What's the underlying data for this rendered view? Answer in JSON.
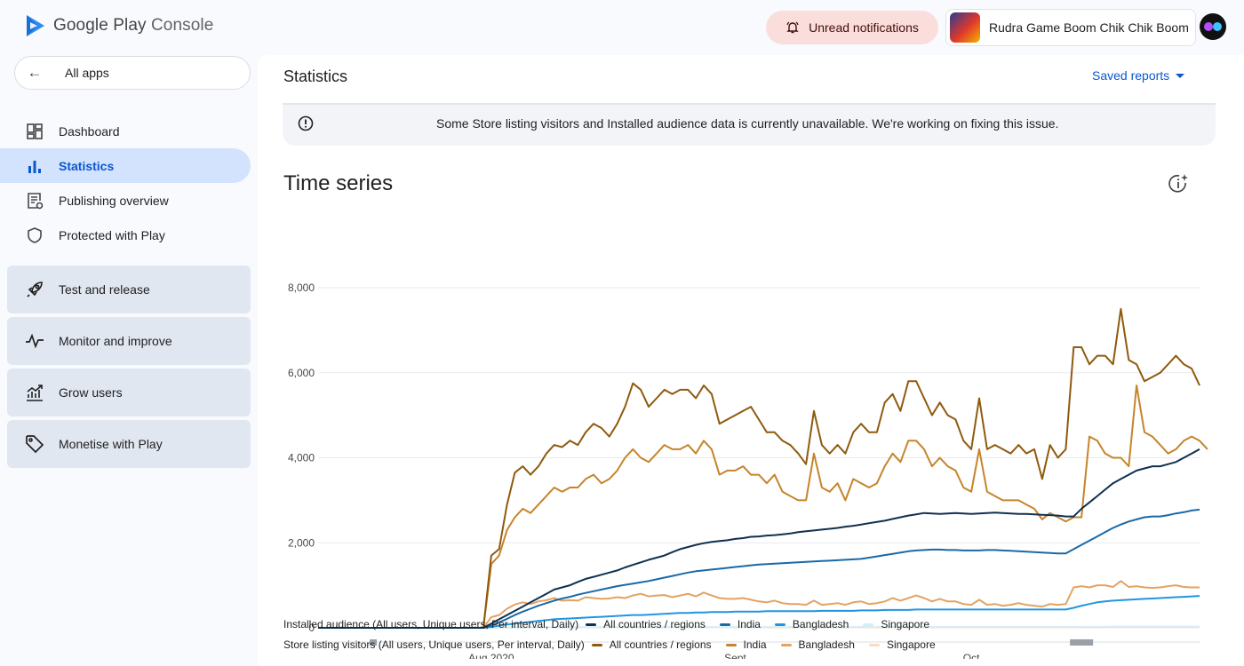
{
  "header": {
    "logo_text_a": "Google Play",
    "logo_text_b": " Console",
    "notifications_label": "Unread notifications",
    "app_name": "Rudra Game Boom Chik Chik Boom"
  },
  "sidebar": {
    "all_apps": "All apps",
    "items": [
      {
        "label": "Dashboard",
        "icon": "dashboard-icon"
      },
      {
        "label": "Statistics",
        "icon": "bar-chart-icon",
        "active": true
      },
      {
        "label": "Publishing overview",
        "icon": "publishing-icon"
      },
      {
        "label": "Protected with Play",
        "icon": "shield-icon"
      }
    ],
    "sections": [
      {
        "label": "Test and release",
        "icon": "rocket-icon"
      },
      {
        "label": "Monitor and improve",
        "icon": "pulse-icon"
      },
      {
        "label": "Grow users",
        "icon": "growth-icon"
      },
      {
        "label": "Monetise with Play",
        "icon": "tag-icon"
      }
    ]
  },
  "main": {
    "page_title": "Statistics",
    "saved_reports": "Saved reports",
    "banner_text": "Some Store listing visitors and Installed audience data is currently unavailable. We're working on fixing this issue.",
    "section_title": "Time series"
  },
  "colors": {
    "accent": "#0b57d0",
    "active_nav_bg": "#d3e3fd",
    "installed_all": "#0f3150",
    "installed_india": "#1a69a6",
    "installed_bangladesh": "#2196e0",
    "installed_singapore": "#d6edf8",
    "visitors_all": "#8f5a0e",
    "visitors_india": "#c6842b",
    "visitors_bangladesh": "#e3a363",
    "visitors_singapore": "#f6dcc2"
  },
  "legend": {
    "installed_title": "Installed audience (All users, Unique users, Per interval, Daily)",
    "visitors_title": "Store listing visitors (All users, Unique users, Per interval, Daily)",
    "installed_items": [
      "All countries / regions",
      "India",
      "Bangladesh",
      "Singapore"
    ],
    "visitors_items": [
      "All countries / regions",
      "India",
      "Bangladesh",
      "Singapore"
    ]
  },
  "chart_data": {
    "type": "line",
    "title": "Time series",
    "xlabel": "",
    "ylabel": "",
    "ylim": [
      0,
      8000
    ],
    "yticks": [
      "8,000",
      "6,000",
      "4,000",
      "2,000",
      "0"
    ],
    "ytick_values": [
      8000,
      6000,
      4000,
      2000,
      0
    ],
    "xticks": [
      "Aug 2020",
      "Sept",
      "Oct"
    ],
    "xtick_days": [
      22,
      53,
      83
    ],
    "x_days_count": 113,
    "grid": true,
    "series": [
      {
        "name": "Installed audience – All countries / regions",
        "color": "#0f3150",
        "values": [
          0,
          0,
          0,
          0,
          0,
          0,
          0,
          0,
          0,
          0,
          0,
          0,
          0,
          0,
          0,
          0,
          0,
          0,
          0,
          0,
          0,
          0,
          100,
          200,
          300,
          400,
          500,
          600,
          700,
          800,
          900,
          950,
          1000,
          1080,
          1150,
          1200,
          1250,
          1300,
          1350,
          1420,
          1480,
          1540,
          1600,
          1650,
          1700,
          1780,
          1850,
          1900,
          1950,
          1990,
          2020,
          2040,
          2060,
          2090,
          2110,
          2140,
          2150,
          2170,
          2180,
          2200,
          2220,
          2250,
          2270,
          2290,
          2310,
          2330,
          2350,
          2380,
          2400,
          2430,
          2460,
          2490,
          2520,
          2560,
          2600,
          2640,
          2670,
          2700,
          2690,
          2680,
          2690,
          2700,
          2690,
          2680,
          2690,
          2700,
          2710,
          2700,
          2690,
          2680,
          2680,
          2670,
          2660,
          2650,
          2640,
          2620,
          2620,
          2800,
          2950,
          3100,
          3250,
          3400,
          3500,
          3600,
          3700,
          3750,
          3800,
          3800,
          3850,
          3900,
          4000,
          4100,
          4200
        ]
      },
      {
        "name": "Installed audience – India",
        "color": "#1a69a6",
        "values": [
          0,
          0,
          0,
          0,
          0,
          0,
          0,
          0,
          0,
          0,
          0,
          0,
          0,
          0,
          0,
          0,
          0,
          0,
          0,
          0,
          0,
          0,
          50,
          130,
          210,
          300,
          380,
          450,
          520,
          580,
          640,
          690,
          730,
          780,
          820,
          860,
          900,
          940,
          980,
          1010,
          1040,
          1070,
          1100,
          1140,
          1180,
          1220,
          1260,
          1300,
          1330,
          1350,
          1370,
          1390,
          1410,
          1430,
          1450,
          1470,
          1490,
          1500,
          1510,
          1520,
          1530,
          1540,
          1550,
          1560,
          1570,
          1580,
          1590,
          1600,
          1610,
          1620,
          1650,
          1680,
          1710,
          1740,
          1770,
          1800,
          1820,
          1830,
          1840,
          1840,
          1830,
          1830,
          1820,
          1820,
          1820,
          1830,
          1830,
          1820,
          1810,
          1800,
          1790,
          1780,
          1770,
          1760,
          1750,
          1750,
          1850,
          1950,
          2050,
          2150,
          2250,
          2350,
          2430,
          2500,
          2550,
          2600,
          2620,
          2620,
          2650,
          2690,
          2720,
          2760,
          2780
        ]
      },
      {
        "name": "Installed audience – Bangladesh",
        "color": "#2196e0",
        "values": [
          0,
          0,
          0,
          0,
          0,
          0,
          0,
          0,
          0,
          0,
          0,
          0,
          0,
          0,
          0,
          0,
          0,
          0,
          0,
          0,
          0,
          0,
          20,
          50,
          80,
          100,
          120,
          140,
          160,
          180,
          200,
          210,
          220,
          230,
          240,
          250,
          260,
          270,
          280,
          290,
          300,
          300,
          310,
          320,
          330,
          340,
          350,
          350,
          360,
          360,
          370,
          370,
          370,
          380,
          380,
          380,
          380,
          390,
          390,
          390,
          390,
          390,
          390,
          390,
          400,
          400,
          400,
          400,
          400,
          410,
          410,
          410,
          420,
          420,
          420,
          420,
          430,
          430,
          430,
          430,
          430,
          430,
          430,
          430,
          430,
          430,
          430,
          430,
          430,
          430,
          430,
          430,
          430,
          430,
          430,
          430,
          470,
          520,
          560,
          600,
          620,
          640,
          650,
          660,
          670,
          680,
          690,
          700,
          710,
          720,
          730,
          740,
          750
        ]
      },
      {
        "name": "Installed audience – Singapore",
        "color": "#d6edf8",
        "values": [
          0,
          0,
          0,
          0,
          0,
          0,
          0,
          0,
          0,
          0,
          0,
          0,
          0,
          0,
          0,
          0,
          0,
          0,
          0,
          0,
          0,
          0,
          2,
          4,
          5,
          6,
          7,
          8,
          9,
          10,
          10,
          11,
          11,
          12,
          12,
          12,
          13,
          13,
          13,
          14,
          14,
          14,
          14,
          15,
          15,
          15,
          15,
          16,
          16,
          16,
          16,
          16,
          17,
          17,
          17,
          17,
          17,
          18,
          18,
          18,
          18,
          18,
          18,
          19,
          19,
          19,
          19,
          19,
          19,
          20,
          20,
          20,
          20,
          20,
          20,
          20,
          20,
          20,
          20,
          20,
          20,
          20,
          20,
          20,
          20,
          20,
          20,
          20,
          20,
          20,
          20,
          20,
          20,
          20,
          20,
          20,
          21,
          22,
          23,
          24,
          24,
          25,
          25,
          26,
          26,
          26,
          27,
          27,
          27,
          28,
          28,
          28,
          28
        ]
      },
      {
        "name": "Store listing visitors – All countries / regions",
        "color": "#8f5a0e",
        "values": [
          0,
          0,
          0,
          0,
          0,
          0,
          0,
          0,
          0,
          0,
          0,
          0,
          0,
          0,
          0,
          0,
          0,
          0,
          0,
          0,
          0,
          0,
          1700,
          1850,
          2900,
          3650,
          3800,
          3600,
          3800,
          4100,
          4300,
          4250,
          4400,
          4300,
          4600,
          4800,
          4700,
          4500,
          4800,
          5200,
          5750,
          5600,
          5200,
          5400,
          5600,
          5500,
          5600,
          5600,
          5400,
          5700,
          5500,
          4800,
          4900,
          5000,
          5100,
          5200,
          4900,
          4600,
          4600,
          4400,
          4300,
          4100,
          3850,
          5100,
          4300,
          4100,
          4300,
          4100,
          4600,
          4800,
          4600,
          4600,
          5300,
          5500,
          5100,
          5800,
          5800,
          5400,
          5000,
          5300,
          5000,
          4900,
          4400,
          4200,
          5400,
          4200,
          4300,
          4200,
          4100,
          4300,
          4100,
          4200,
          3500,
          4300,
          4000,
          4200,
          6600,
          6600,
          6200,
          6400,
          6400,
          6200,
          7500,
          6300,
          6200,
          5800,
          5900,
          6000,
          6200,
          6400,
          6200,
          6100,
          5700
        ]
      },
      {
        "name": "Store listing visitors – India",
        "color": "#c6842b",
        "values": [
          0,
          0,
          0,
          0,
          0,
          0,
          0,
          0,
          0,
          0,
          0,
          0,
          0,
          0,
          0,
          0,
          0,
          0,
          0,
          0,
          0,
          0,
          1500,
          1700,
          2300,
          2600,
          2800,
          2700,
          2900,
          3100,
          3300,
          3200,
          3300,
          3300,
          3500,
          3600,
          3400,
          3500,
          3700,
          4000,
          4200,
          4000,
          3900,
          4100,
          4300,
          4200,
          4200,
          4300,
          4100,
          4400,
          4200,
          3600,
          3700,
          3700,
          3800,
          3600,
          3600,
          3400,
          3600,
          3200,
          3100,
          3000,
          3000,
          4100,
          3300,
          3200,
          3400,
          3000,
          3500,
          3400,
          3300,
          3400,
          3800,
          4100,
          3900,
          4400,
          4400,
          4200,
          3800,
          4000,
          3800,
          3700,
          3300,
          3200,
          4200,
          3200,
          3100,
          3000,
          3000,
          3000,
          2900,
          2800,
          2550,
          2700,
          2600,
          2500,
          2600,
          2600,
          4500,
          4400,
          4100,
          4000,
          4000,
          3800,
          5700,
          4600,
          4500,
          4300,
          4100,
          4200,
          4400,
          4500,
          4400,
          4200
        ]
      },
      {
        "name": "Store listing visitors – Bangladesh",
        "color": "#e3a363",
        "values": [
          0,
          0,
          0,
          0,
          0,
          0,
          0,
          0,
          0,
          0,
          0,
          0,
          0,
          0,
          0,
          0,
          0,
          0,
          0,
          0,
          0,
          0,
          250,
          300,
          450,
          550,
          600,
          560,
          620,
          650,
          700,
          640,
          650,
          640,
          720,
          700,
          680,
          690,
          720,
          700,
          760,
          800,
          740,
          760,
          770,
          720,
          760,
          800,
          740,
          830,
          760,
          700,
          680,
          680,
          700,
          660,
          620,
          600,
          640,
          580,
          560,
          560,
          540,
          640,
          540,
          560,
          580,
          540,
          600,
          620,
          560,
          580,
          620,
          700,
          640,
          700,
          760,
          700,
          620,
          680,
          620,
          620,
          560,
          540,
          660,
          540,
          560,
          520,
          540,
          580,
          540,
          520,
          500,
          560,
          540,
          560,
          950,
          980,
          950,
          1000,
          1000,
          960,
          1100,
          960,
          980,
          950,
          940,
          950,
          980,
          1000,
          960,
          950,
          950
        ]
      },
      {
        "name": "Store listing visitors – Singapore",
        "color": "#f6dcc2",
        "values": [
          0,
          0,
          0,
          0,
          0,
          0,
          0,
          0,
          0,
          0,
          0,
          0,
          0,
          0,
          0,
          0,
          0,
          0,
          0,
          0,
          0,
          0,
          5,
          8,
          10,
          12,
          10,
          11,
          12,
          12,
          13,
          11,
          12,
          12,
          13,
          14,
          12,
          13,
          14,
          13,
          15,
          14,
          13,
          14,
          15,
          14,
          14,
          15,
          13,
          15,
          14,
          12,
          12,
          13,
          13,
          12,
          12,
          11,
          12,
          11,
          11,
          11,
          10,
          12,
          11,
          11,
          12,
          11,
          12,
          12,
          11,
          11,
          12,
          13,
          12,
          13,
          14,
          13,
          12,
          13,
          12,
          12,
          11,
          11,
          12,
          11,
          11,
          10,
          10,
          11,
          10,
          10,
          10,
          11,
          10,
          11,
          14,
          15,
          14,
          15,
          15,
          14,
          16,
          14,
          15,
          14,
          14,
          14,
          15,
          15,
          14,
          14,
          14
        ]
      }
    ]
  }
}
